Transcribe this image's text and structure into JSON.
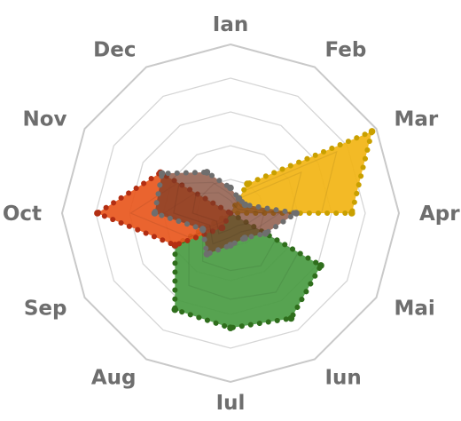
{
  "chart_data": {
    "type": "radar",
    "categories": [
      "Ian",
      "Feb",
      "Mar",
      "Apr",
      "Mai",
      "Iun",
      "Iul",
      "Aug",
      "Sep",
      "Oct",
      "Nov",
      "Dec"
    ],
    "rlim": [
      0,
      100
    ],
    "grid": true,
    "grid_rings": 5,
    "legend": "none",
    "series": [
      {
        "color_fill": "#f2b515",
        "color_dots": "#c9a000",
        "values": [
          0,
          20,
          97,
          72,
          0,
          0,
          0,
          0,
          0,
          0,
          0,
          0
        ]
      },
      {
        "color_fill": "#4a9c44",
        "color_dots": "#2f6e1c",
        "values": [
          0,
          0,
          0,
          0,
          62,
          72,
          68,
          66,
          38,
          0,
          0,
          0
        ]
      },
      {
        "color_fill": "#e8581f",
        "color_dots": "#b32e12",
        "values": [
          0,
          0,
          0,
          0,
          0,
          0,
          0,
          10,
          38,
          79,
          48,
          0
        ]
      },
      {
        "color_fill": "#7a3b27",
        "color_dots": "#6e6e6e",
        "values": [
          15,
          10,
          10,
          39,
          24,
          17,
          19,
          28,
          19,
          45,
          47,
          28
        ]
      }
    ]
  }
}
